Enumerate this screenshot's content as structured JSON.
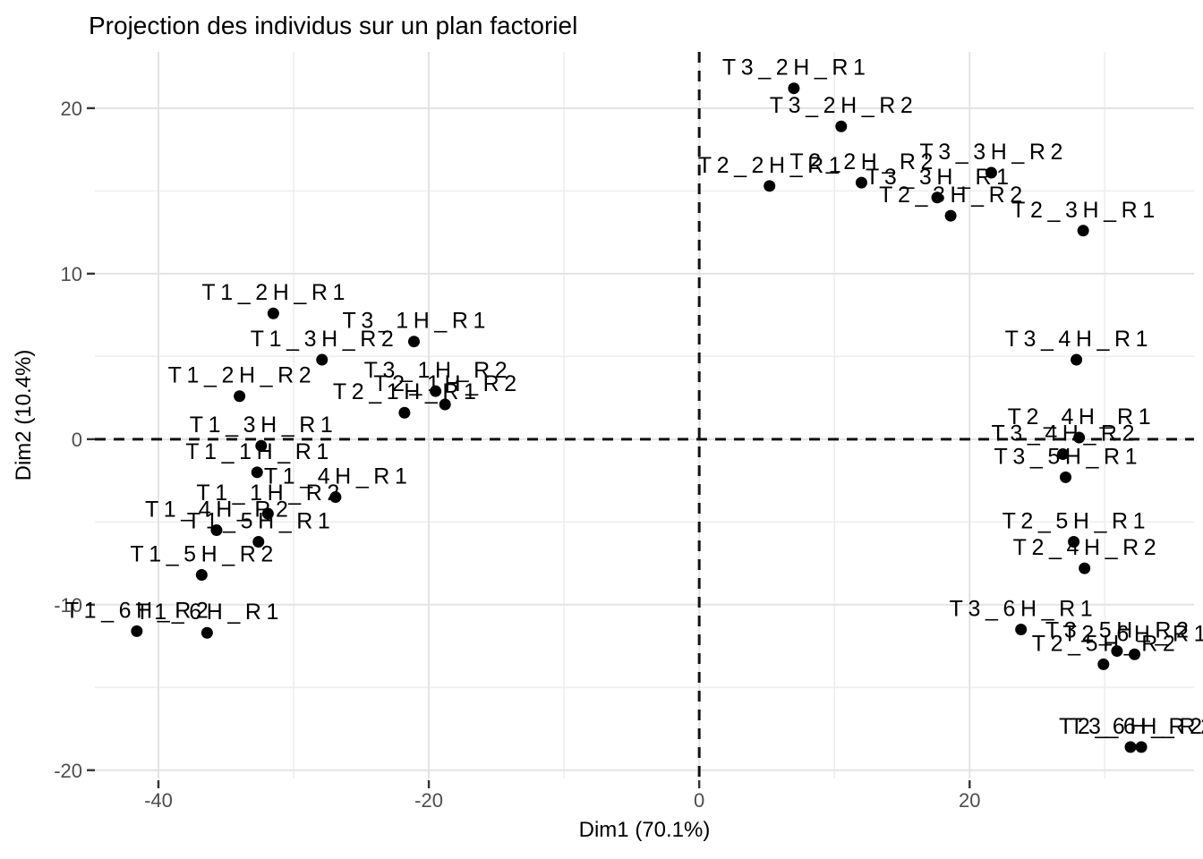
{
  "chart_data": {
    "type": "scatter",
    "title": "Projection des individus sur un plan factoriel",
    "xlabel": "Dim1 (70.1%)",
    "ylabel": "Dim2 (10.4%)",
    "xlim": [
      -44.7,
      36.6
    ],
    "ylim": [
      -20.5,
      23.4
    ],
    "x_ticks": [
      -40,
      -20,
      0,
      20
    ],
    "y_ticks": [
      20,
      10,
      0,
      -10,
      -20
    ],
    "x_minor_ticks": [
      -30,
      -10,
      10,
      30
    ],
    "y_minor_ticks": [
      15,
      5,
      -5,
      -15
    ],
    "grid": "major-and-minor",
    "legend_position": "none",
    "reference_lines": [
      {
        "orientation": "horizontal",
        "value": 0,
        "style": "dashed"
      },
      {
        "orientation": "vertical",
        "value": 0,
        "style": "dashed"
      }
    ],
    "colors": {
      "background": "#ffffff",
      "point": "#000000",
      "point_label": "#000000",
      "grid_major": "#e3e3e3",
      "grid_minor": "#eeeeee",
      "tick_text": "#4d4d4d",
      "tick_mark": "#333333",
      "reference_line": "#111111"
    },
    "points": [
      {
        "label": "T1_1H_R1",
        "x": -32.7,
        "y": -2.0
      },
      {
        "label": "T1_1H_R2",
        "x": -31.9,
        "y": -4.5
      },
      {
        "label": "T1_2H_R1",
        "x": -31.5,
        "y": 7.6
      },
      {
        "label": "T1_2H_R2",
        "x": -34.0,
        "y": 2.6
      },
      {
        "label": "T1_3H_R1",
        "x": -32.4,
        "y": -0.4
      },
      {
        "label": "T1_3H_R2",
        "x": -27.9,
        "y": 4.8
      },
      {
        "label": "T1_4H_R1",
        "x": -26.9,
        "y": -3.5
      },
      {
        "label": "T1_4H_R2",
        "x": -35.7,
        "y": -5.5
      },
      {
        "label": "T1_5H_R1",
        "x": -32.6,
        "y": -6.2
      },
      {
        "label": "T1_5H_R2",
        "x": -36.8,
        "y": -8.2
      },
      {
        "label": "T1_6H_R1",
        "x": -36.4,
        "y": -11.7
      },
      {
        "label": "T1_6H_R2",
        "x": -41.6,
        "y": -11.6
      },
      {
        "label": "T2_1H_R1",
        "x": -21.8,
        "y": 1.6
      },
      {
        "label": "T2_1H_R2",
        "x": -18.8,
        "y": 2.1
      },
      {
        "label": "T2_2H_R1",
        "x": 5.2,
        "y": 15.3
      },
      {
        "label": "T2_2H_R2",
        "x": 12.0,
        "y": 15.5
      },
      {
        "label": "T2_3H_R1",
        "x": 28.4,
        "y": 12.6
      },
      {
        "label": "T2_3H_R2",
        "x": 18.6,
        "y": 13.5
      },
      {
        "label": "T2_4H_R1",
        "x": 28.1,
        "y": 0.1
      },
      {
        "label": "T2_4H_R2",
        "x": 28.5,
        "y": -7.8
      },
      {
        "label": "T2_5H_R1",
        "x": 27.7,
        "y": -6.2
      },
      {
        "label": "T2_5H_R2",
        "x": 29.9,
        "y": -13.6
      },
      {
        "label": "T2_6H_R1",
        "x": 32.2,
        "y": -13.0
      },
      {
        "label": "T2_6H_R2",
        "x": 31.9,
        "y": -18.6
      },
      {
        "label": "T3_1H_R1",
        "x": -21.1,
        "y": 5.9
      },
      {
        "label": "T3_1H_R2",
        "x": -19.5,
        "y": 2.9
      },
      {
        "label": "T3_2H_R1",
        "x": 7.0,
        "y": 21.2
      },
      {
        "label": "T3_2H_R2",
        "x": 10.5,
        "y": 18.9
      },
      {
        "label": "T3_3H_R1",
        "x": 17.6,
        "y": 14.6
      },
      {
        "label": "T3_3H_R2",
        "x": 21.6,
        "y": 16.1
      },
      {
        "label": "T3_4H_R1",
        "x": 27.9,
        "y": 4.8
      },
      {
        "label": "T3_4H_R2",
        "x": 26.9,
        "y": -0.9
      },
      {
        "label": "T3_5H_R1",
        "x": 27.1,
        "y": -2.3
      },
      {
        "label": "T3_5H_R2",
        "x": 30.9,
        "y": -12.8
      },
      {
        "label": "T3_6H_R1",
        "x": 23.8,
        "y": -11.5
      },
      {
        "label": "T3_6H_R2",
        "x": 32.7,
        "y": -18.6
      }
    ]
  }
}
